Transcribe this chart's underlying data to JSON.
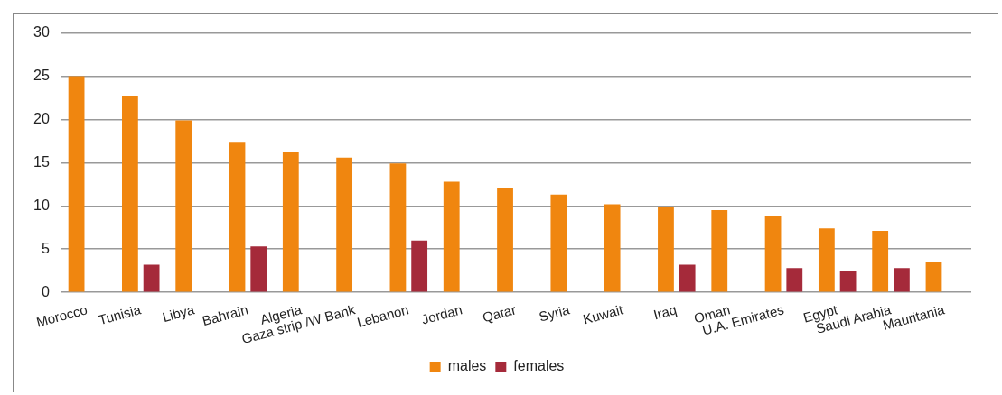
{
  "chart_data": {
    "type": "bar",
    "categories": [
      "Morocco",
      "Tunisia",
      "Libya",
      "Bahrain",
      "Algeria",
      "Gaza strip /W Bank",
      "Lebanon",
      "Jordan",
      "Qatar",
      "Syria",
      "Kuwait",
      "Iraq",
      "Oman",
      "U.A. Emirates",
      "Egypt",
      "Saudi Arabia",
      "Mauritania"
    ],
    "series": [
      {
        "name": "males",
        "color": "#f0860f",
        "values": [
          25,
          22.7,
          19.9,
          17.3,
          16.3,
          15.6,
          14.9,
          12.8,
          12.1,
          11.3,
          10.2,
          9.9,
          9.5,
          8.8,
          7.4,
          7.1,
          3.5
        ]
      },
      {
        "name": "females",
        "color": "#a52a3a",
        "values": [
          null,
          3.2,
          null,
          5.3,
          null,
          null,
          6.0,
          null,
          null,
          null,
          null,
          3.2,
          null,
          2.8,
          2.5,
          2.8,
          null
        ]
      }
    ],
    "ylim": [
      0,
      30
    ],
    "yticks": [
      0,
      5,
      10,
      15,
      20,
      25,
      30
    ],
    "grid": "y",
    "legend": "bottom"
  }
}
